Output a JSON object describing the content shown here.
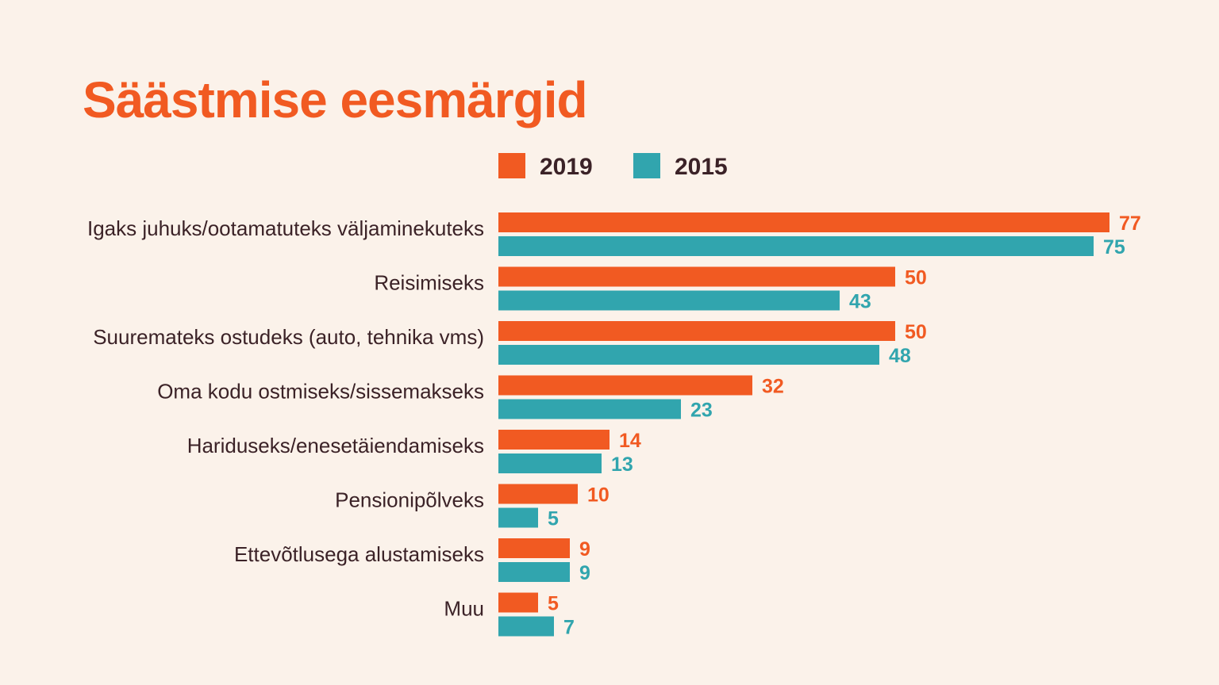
{
  "chart_data": {
    "type": "bar",
    "orientation": "horizontal",
    "title": "Säästmise eesmärgid",
    "categories": [
      "Igaks juhuks/ootamatuteks väljaminekuteks",
      "Reisimiseks",
      "Suuremateks ostudeks (auto, tehnika  vms)",
      "Oma kodu ostmiseks/sissemakseks",
      "Hariduseks/enesetäiendamiseks",
      "Pensionipõlveks",
      "Ettevõtlusega alustamiseks",
      "Muu"
    ],
    "series": [
      {
        "name": "2019",
        "color": "#f15a22",
        "values": [
          77,
          50,
          50,
          32,
          14,
          10,
          9,
          5
        ]
      },
      {
        "name": "2015",
        "color": "#31a5ae",
        "values": [
          75,
          43,
          48,
          23,
          13,
          5,
          9,
          7
        ]
      }
    ],
    "xlim": [
      0,
      80
    ],
    "grid": false,
    "legend_position": "top",
    "data_labels": true
  },
  "colors": {
    "background": "#fbf2ea",
    "title": "#f15a22",
    "text": "#3b2227"
  }
}
